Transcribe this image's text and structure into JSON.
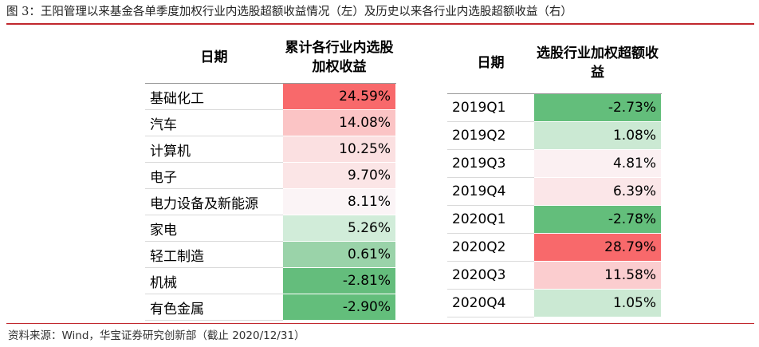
{
  "title": "图 3：王阳管理以来基金各单季度加权行业内选股超额收益情况（左）及历史以来各行业内选股超额收益（右）",
  "source": "资料来源：Wind，华宝证券研究创新部（截止 2020/12/31）",
  "left_table": {
    "headers": [
      "日期",
      "累计各行业内选股加权收益"
    ],
    "rows": [
      {
        "label": "基础化工",
        "value": "24.59%",
        "color": "#f8696b"
      },
      {
        "label": "汽车",
        "value": "14.08%",
        "color": "#fbc4c5"
      },
      {
        "label": "计算机",
        "value": "10.25%",
        "color": "#fbe0e1"
      },
      {
        "label": "电子",
        "value": "9.70%",
        "color": "#fbe5e6"
      },
      {
        "label": "电力设备及新能源",
        "value": "8.11%",
        "color": "#fbf4f6"
      },
      {
        "label": "家电",
        "value": "5.26%",
        "color": "#d1ecd9"
      },
      {
        "label": "轻工制造",
        "value": "0.61%",
        "color": "#9ad3a9"
      },
      {
        "label": "机械",
        "value": "-2.81%",
        "color": "#64bd7c"
      },
      {
        "label": "有色金属",
        "value": "-2.90%",
        "color": "#63be7b"
      }
    ]
  },
  "right_table": {
    "headers": [
      "日期",
      "选股行业加权超额收益"
    ],
    "rows": [
      {
        "label": "2019Q1",
        "value": "-2.73%",
        "color": "#63be7b"
      },
      {
        "label": "2019Q2",
        "value": "1.08%",
        "color": "#cbe9d3"
      },
      {
        "label": "2019Q3",
        "value": "4.81%",
        "color": "#fbf0f2"
      },
      {
        "label": "2019Q4",
        "value": "6.39%",
        "color": "#fbe6e8"
      },
      {
        "label": "2020Q1",
        "value": "-2.78%",
        "color": "#63be7b"
      },
      {
        "label": "2020Q2",
        "value": "28.79%",
        "color": "#f8696b"
      },
      {
        "label": "2020Q3",
        "value": "11.58%",
        "color": "#fbcdcf"
      },
      {
        "label": "2020Q4",
        "value": "1.05%",
        "color": "#cbe9d3"
      }
    ]
  }
}
